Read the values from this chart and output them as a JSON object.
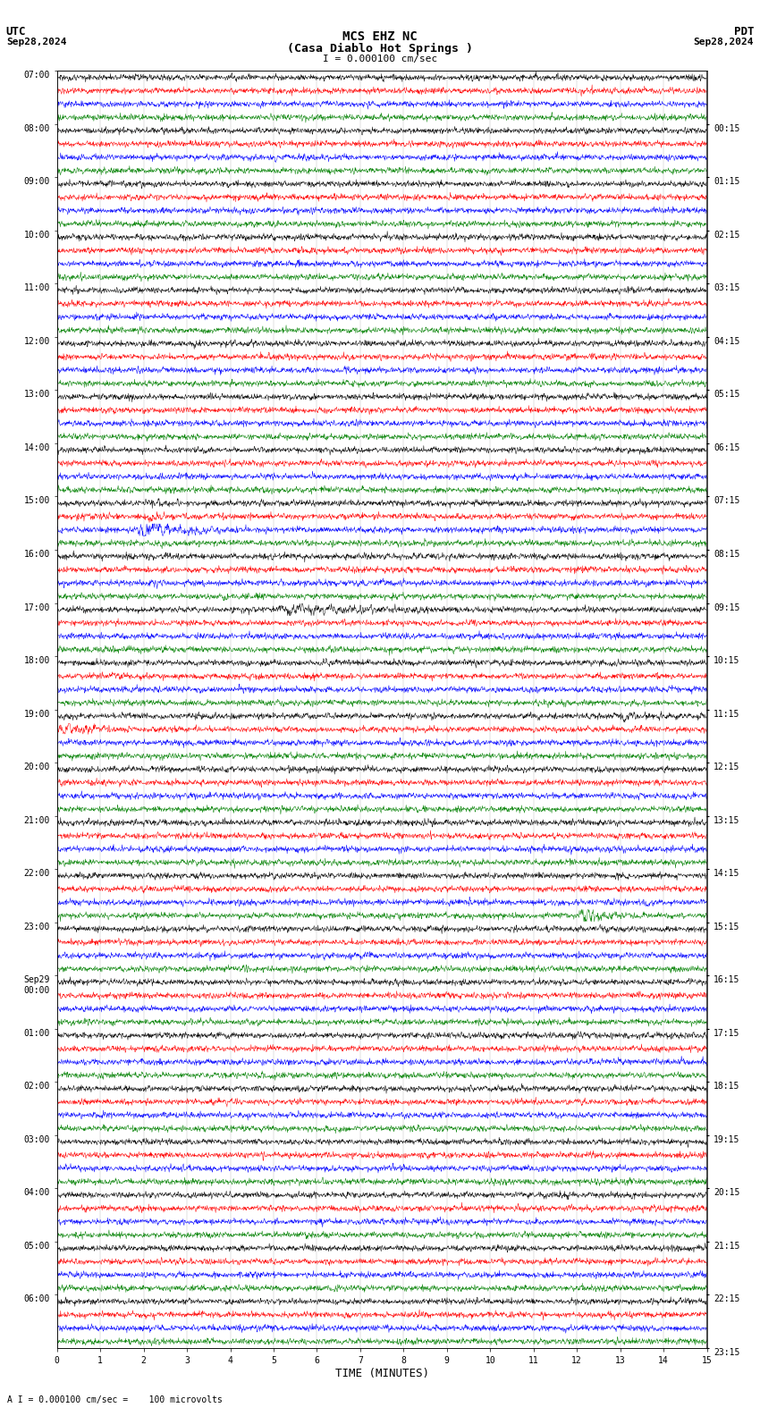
{
  "title_line1": "MCS EHZ NC",
  "title_line2": "(Casa Diablo Hot Springs )",
  "scale_label": "I = 0.000100 cm/sec",
  "bottom_label": "A I = 0.000100 cm/sec =    100 microvolts",
  "utc_label": "UTC",
  "utc_date": "Sep28,2024",
  "pdt_label": "PDT",
  "pdt_date": "Sep28,2024",
  "xlabel": "TIME (MINUTES)",
  "left_times": [
    "07:00",
    "08:00",
    "09:00",
    "10:00",
    "11:00",
    "12:00",
    "13:00",
    "14:00",
    "15:00",
    "16:00",
    "17:00",
    "18:00",
    "19:00",
    "20:00",
    "21:00",
    "22:00",
    "23:00",
    "Sep29\n00:00",
    "01:00",
    "02:00",
    "03:00",
    "04:00",
    "05:00",
    "06:00"
  ],
  "right_times": [
    "00:15",
    "01:15",
    "02:15",
    "03:15",
    "04:15",
    "05:15",
    "06:15",
    "07:15",
    "08:15",
    "09:15",
    "10:15",
    "11:15",
    "12:15",
    "13:15",
    "14:15",
    "15:15",
    "16:15",
    "17:15",
    "18:15",
    "19:15",
    "20:15",
    "21:15",
    "22:15",
    "23:15"
  ],
  "trace_color_order": [
    "black",
    "red",
    "blue",
    "green"
  ],
  "n_rows": 24,
  "n_traces_per_row": 4,
  "xmin": 0,
  "xmax": 15,
  "background_color": "white",
  "title_fontsize": 10,
  "label_fontsize": 8,
  "tick_fontsize": 7
}
